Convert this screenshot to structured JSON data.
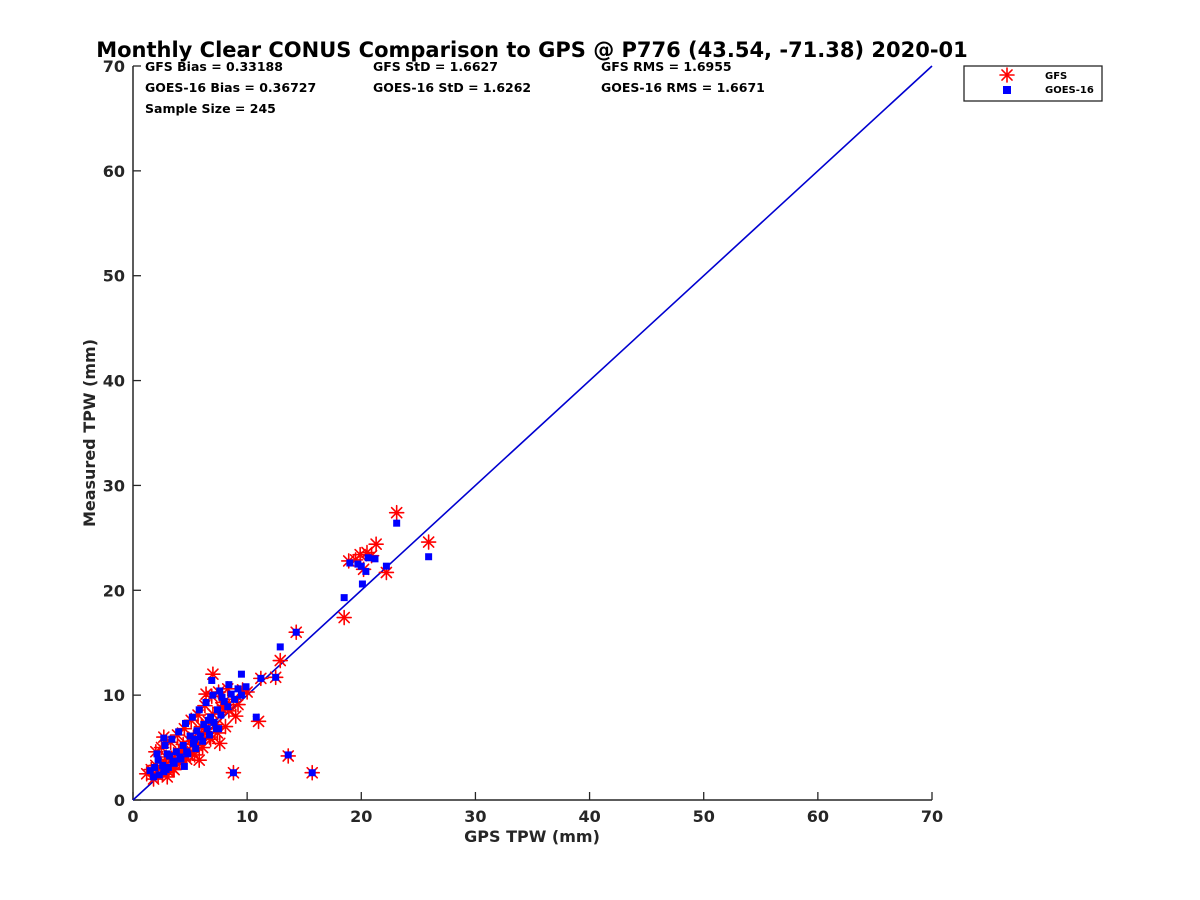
{
  "chart_data": {
    "type": "scatter",
    "title": "Monthly Clear CONUS Comparison to GPS @ P776 (43.54, -71.38) 2020-01",
    "xlabel": "GPS TPW (mm)",
    "ylabel": "Measured TPW (mm)",
    "xlim": [
      0,
      70
    ],
    "ylim": [
      0,
      70
    ],
    "xticks": [
      "0",
      "10",
      "20",
      "30",
      "40",
      "50",
      "60",
      "70"
    ],
    "yticks": [
      "0",
      "10",
      "20",
      "30",
      "40",
      "50",
      "60",
      "70"
    ],
    "grid": false,
    "legend_position": "top-right-outside",
    "stats": {
      "gfs_bias": "GFS Bias = 0.33188",
      "gfs_std": "GFS StD = 1.6627",
      "gfs_rms": "GFS RMS = 1.6955",
      "goes_bias": "GOES-16 Bias = 0.36727",
      "goes_std": "GOES-16 StD = 1.6262",
      "goes_rms": "GOES-16 RMS = 1.6671",
      "sample_size": "Sample Size = 245"
    },
    "reference_line": {
      "name": "1:1 line",
      "x": [
        0,
        70
      ],
      "y": [
        0,
        70
      ],
      "color": "#0000d0"
    },
    "series": [
      {
        "name": "GFS",
        "marker": "asterisk",
        "color": "#ff0000",
        "points": [
          [
            1.2,
            2.5
          ],
          [
            1.6,
            2.9
          ],
          [
            2.0,
            3.3
          ],
          [
            2.4,
            3.0
          ],
          [
            2.8,
            3.6
          ],
          [
            3.1,
            2.7
          ],
          [
            3.4,
            4.0
          ],
          [
            3.7,
            3.4
          ],
          [
            4.0,
            4.5
          ],
          [
            4.3,
            4.9
          ],
          [
            4.6,
            4.2
          ],
          [
            5.0,
            5.6
          ],
          [
            5.3,
            6.0
          ],
          [
            5.6,
            5.2
          ],
          [
            6.0,
            7.0
          ],
          [
            6.3,
            6.5
          ],
          [
            6.6,
            7.5
          ],
          [
            7.0,
            8.2
          ],
          [
            7.3,
            7.2
          ],
          [
            7.7,
            8.8
          ],
          [
            8.0,
            9.0
          ],
          [
            8.4,
            8.5
          ],
          [
            8.8,
            9.6
          ],
          [
            9.2,
            9.1
          ],
          [
            9.6,
            10.5
          ],
          [
            10.0,
            10.3
          ],
          [
            2.2,
            2.3
          ],
          [
            2.6,
            2.6
          ],
          [
            3.0,
            2.2
          ],
          [
            3.5,
            3.0
          ],
          [
            4.1,
            3.6
          ],
          [
            4.7,
            3.9
          ],
          [
            5.4,
            4.3
          ],
          [
            6.1,
            5.0
          ],
          [
            6.8,
            5.8
          ],
          [
            7.4,
            6.4
          ],
          [
            8.1,
            7.0
          ],
          [
            2.0,
            4.6
          ],
          [
            2.5,
            5.0
          ],
          [
            3.3,
            5.5
          ],
          [
            3.9,
            6.2
          ],
          [
            4.5,
            6.8
          ],
          [
            5.1,
            7.6
          ],
          [
            5.7,
            8.1
          ],
          [
            6.3,
            9.0
          ],
          [
            6.9,
            9.9
          ],
          [
            7.5,
            10.3
          ],
          [
            8.3,
            10.6
          ],
          [
            6.4,
            10.1
          ],
          [
            7.0,
            12.0
          ],
          [
            2.7,
            6.0
          ],
          [
            5.8,
            3.8
          ],
          [
            7.6,
            5.4
          ],
          [
            8.8,
            2.6
          ],
          [
            11.0,
            7.5
          ],
          [
            11.2,
            11.6
          ],
          [
            12.5,
            11.7
          ],
          [
            12.9,
            13.3
          ],
          [
            13.6,
            4.2
          ],
          [
            14.3,
            16.0
          ],
          [
            15.7,
            2.6
          ],
          [
            18.5,
            17.4
          ],
          [
            18.9,
            22.8
          ],
          [
            19.5,
            22.9
          ],
          [
            19.9,
            23.4
          ],
          [
            20.2,
            22.0
          ],
          [
            20.5,
            23.6
          ],
          [
            20.9,
            23.3
          ],
          [
            21.3,
            24.4
          ],
          [
            22.2,
            21.7
          ],
          [
            23.1,
            27.4
          ],
          [
            25.9,
            24.6
          ],
          [
            1.8,
            2.0
          ],
          [
            2.9,
            4.1
          ],
          [
            3.6,
            2.9
          ],
          [
            4.4,
            5.3
          ],
          [
            5.2,
            4.6
          ],
          [
            6.7,
            6.0
          ],
          [
            7.9,
            9.3
          ],
          [
            9.0,
            8.0
          ]
        ]
      },
      {
        "name": "GOES-16",
        "marker": "square",
        "color": "#0000ff",
        "points": [
          [
            1.5,
            2.8
          ],
          [
            1.9,
            3.1
          ],
          [
            2.2,
            3.8
          ],
          [
            2.6,
            3.3
          ],
          [
            2.9,
            2.9
          ],
          [
            3.2,
            4.2
          ],
          [
            3.5,
            3.7
          ],
          [
            3.8,
            4.6
          ],
          [
            4.1,
            4.1
          ],
          [
            4.4,
            5.2
          ],
          [
            4.7,
            4.6
          ],
          [
            5.0,
            6.1
          ],
          [
            5.3,
            5.4
          ],
          [
            5.6,
            6.6
          ],
          [
            5.9,
            6.1
          ],
          [
            6.2,
            7.2
          ],
          [
            6.5,
            6.8
          ],
          [
            6.8,
            7.9
          ],
          [
            7.1,
            7.4
          ],
          [
            7.4,
            8.6
          ],
          [
            7.7,
            8.1
          ],
          [
            8.0,
            9.4
          ],
          [
            8.3,
            8.9
          ],
          [
            8.6,
            10.1
          ],
          [
            8.9,
            9.6
          ],
          [
            9.2,
            10.6
          ],
          [
            9.5,
            10.0
          ],
          [
            2.3,
            2.4
          ],
          [
            2.7,
            2.7
          ],
          [
            3.1,
            3.1
          ],
          [
            3.6,
            3.5
          ],
          [
            4.2,
            3.9
          ],
          [
            4.8,
            4.4
          ],
          [
            5.5,
            4.9
          ],
          [
            6.1,
            5.6
          ],
          [
            6.7,
            6.2
          ],
          [
            7.3,
            6.8
          ],
          [
            2.1,
            4.4
          ],
          [
            2.8,
            5.2
          ],
          [
            3.4,
            5.8
          ],
          [
            4.0,
            6.5
          ],
          [
            4.6,
            7.3
          ],
          [
            5.2,
            7.9
          ],
          [
            5.8,
            8.6
          ],
          [
            6.4,
            9.3
          ],
          [
            7.0,
            10.0
          ],
          [
            7.6,
            10.4
          ],
          [
            8.4,
            11.0
          ],
          [
            6.9,
            11.4
          ],
          [
            9.5,
            12.0
          ],
          [
            2.7,
            5.9
          ],
          [
            8.8,
            2.6
          ],
          [
            10.8,
            7.9
          ],
          [
            11.2,
            11.6
          ],
          [
            12.5,
            11.7
          ],
          [
            12.9,
            14.6
          ],
          [
            13.6,
            4.3
          ],
          [
            14.3,
            16.0
          ],
          [
            15.7,
            2.6
          ],
          [
            18.5,
            19.3
          ],
          [
            19.0,
            22.6
          ],
          [
            19.7,
            22.5
          ],
          [
            20.1,
            20.6
          ],
          [
            20.4,
            21.8
          ],
          [
            20.6,
            23.1
          ],
          [
            21.2,
            23.0
          ],
          [
            22.2,
            22.3
          ],
          [
            23.1,
            26.4
          ],
          [
            25.9,
            23.2
          ],
          [
            20.0,
            22.3
          ],
          [
            1.8,
            2.2
          ],
          [
            3.0,
            4.4
          ],
          [
            4.5,
            3.2
          ],
          [
            5.4,
            5.8
          ],
          [
            6.6,
            7.6
          ],
          [
            7.8,
            9.8
          ],
          [
            9.9,
            10.8
          ],
          [
            7.5,
            6.8
          ]
        ]
      }
    ]
  }
}
